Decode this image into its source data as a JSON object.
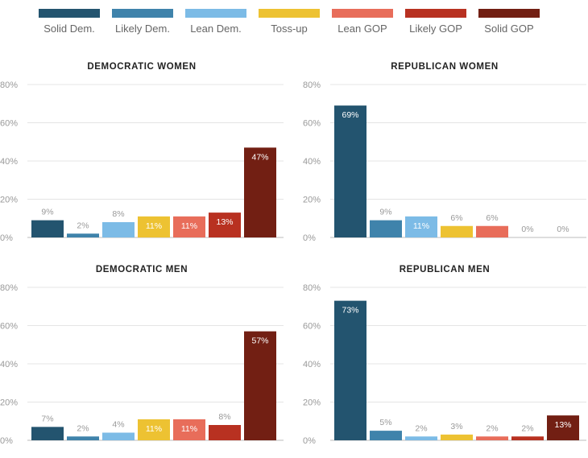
{
  "legend": {
    "items": [
      {
        "label": "Solid Dem.",
        "color": "#23546f"
      },
      {
        "label": "Likely Dem.",
        "color": "#3f83ab"
      },
      {
        "label": "Lean Dem.",
        "color": "#7cbbe6"
      },
      {
        "label": "Toss-up",
        "color": "#edc232"
      },
      {
        "label": "Lean GOP",
        "color": "#e86d5a"
      },
      {
        "label": "Likely GOP",
        "color": "#b83121"
      },
      {
        "label": "Solid GOP",
        "color": "#721f13"
      }
    ]
  },
  "chart_data": [
    {
      "type": "bar",
      "title": "DEMOCRATIC WOMEN",
      "categories": [
        "Solid Dem.",
        "Likely Dem.",
        "Lean Dem.",
        "Toss-up",
        "Lean GOP",
        "Likely GOP",
        "Solid GOP"
      ],
      "values": [
        9,
        2,
        8,
        11,
        11,
        13,
        47
      ],
      "labels": [
        "9%",
        "2%",
        "8%",
        "11%",
        "11%",
        "13%",
        "47%"
      ],
      "yticks": [
        "0%",
        "20%",
        "40%",
        "60%",
        "80%"
      ],
      "ylim": [
        0,
        80
      ],
      "grid": true
    },
    {
      "type": "bar",
      "title": "REPUBLICAN WOMEN",
      "categories": [
        "Solid Dem.",
        "Likely Dem.",
        "Lean Dem.",
        "Toss-up",
        "Lean GOP",
        "Likely GOP",
        "Solid GOP"
      ],
      "values": [
        69,
        9,
        11,
        6,
        6,
        0,
        0
      ],
      "labels": [
        "69%",
        "9%",
        "11%",
        "6%",
        "6%",
        "0%",
        "0%"
      ],
      "yticks": [
        "0%",
        "20%",
        "40%",
        "60%",
        "80%"
      ],
      "ylim": [
        0,
        80
      ],
      "grid": true
    },
    {
      "type": "bar",
      "title": "DEMOCRATIC MEN",
      "categories": [
        "Solid Dem.",
        "Likely Dem.",
        "Lean Dem.",
        "Toss-up",
        "Lean GOP",
        "Likely GOP",
        "Solid GOP"
      ],
      "values": [
        7,
        2,
        4,
        11,
        11,
        8,
        57
      ],
      "labels": [
        "7%",
        "2%",
        "4%",
        "11%",
        "11%",
        "8%",
        "57%"
      ],
      "yticks": [
        "0%",
        "20%",
        "40%",
        "60%",
        "80%"
      ],
      "ylim": [
        0,
        80
      ],
      "grid": true
    },
    {
      "type": "bar",
      "title": "REPUBLICAN MEN",
      "categories": [
        "Solid Dem.",
        "Likely Dem.",
        "Lean Dem.",
        "Toss-up",
        "Lean GOP",
        "Likely GOP",
        "Solid GOP"
      ],
      "values": [
        73,
        5,
        2,
        3,
        2,
        2,
        13
      ],
      "labels": [
        "73%",
        "5%",
        "2%",
        "3%",
        "2%",
        "2%",
        "13%"
      ],
      "yticks": [
        "0%",
        "20%",
        "40%",
        "60%",
        "80%"
      ],
      "ylim": [
        0,
        80
      ],
      "grid": true
    }
  ]
}
